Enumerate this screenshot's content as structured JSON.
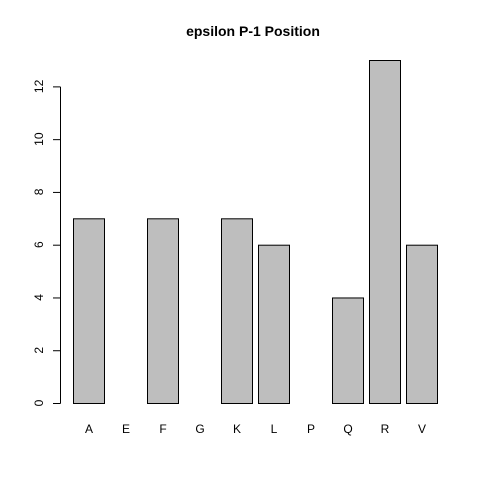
{
  "chart_data": {
    "type": "bar",
    "title": "epsilon P-1 Position",
    "xlabel": "",
    "ylabel": "",
    "categories": [
      "A",
      "E",
      "F",
      "G",
      "K",
      "L",
      "P",
      "Q",
      "R",
      "V"
    ],
    "values": [
      7,
      0,
      7,
      0,
      7,
      6,
      0,
      4,
      13,
      6
    ],
    "ylim": [
      0,
      13
    ],
    "yticks": [
      "0",
      "2",
      "4",
      "6",
      "8",
      "10",
      "12"
    ],
    "grid": false,
    "legend": "none",
    "colors": {
      "bar_fill": "#bebebe",
      "bar_stroke": "#000000",
      "background": "#ffffff"
    }
  }
}
